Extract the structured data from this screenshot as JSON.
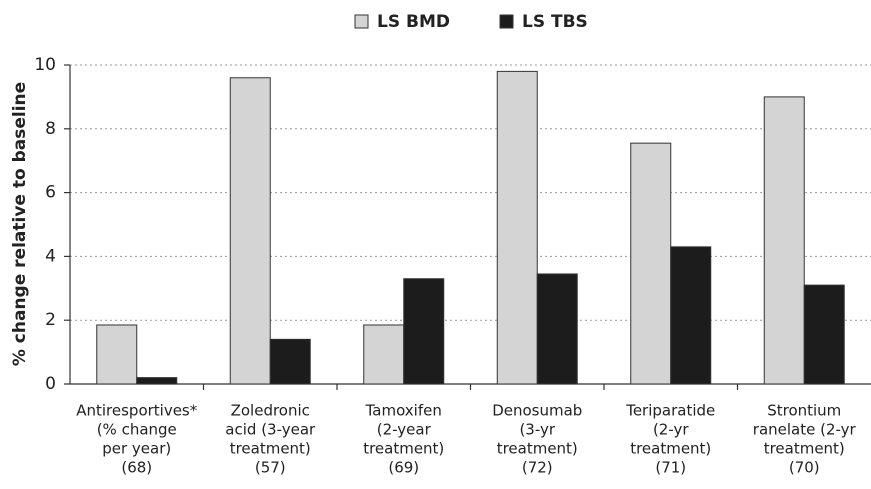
{
  "chart_data": {
    "type": "bar",
    "ylabel": "% change relative to baseline",
    "categories": [
      [
        "Antiresportives*",
        "(% change",
        "per year)",
        "(68)"
      ],
      [
        "Zoledronic",
        "acid (3-year",
        "treatment)",
        "(57)"
      ],
      [
        "Tamoxifen",
        "(2-year",
        "treatment)",
        "(69)"
      ],
      [
        "Denosumab",
        "(3-yr",
        "treatment)",
        "(72)"
      ],
      [
        "Teriparatide",
        "(2-yr",
        "treatment)",
        "(71)"
      ],
      [
        "Strontium",
        "ranelate (2-yr",
        "treatment)",
        "(70)"
      ]
    ],
    "series": [
      {
        "name": "LS BMD",
        "color": "#d4d4d4",
        "values": [
          1.85,
          9.6,
          1.85,
          9.8,
          7.55,
          9.0
        ]
      },
      {
        "name": "LS TBS",
        "color": "#1c1c1c",
        "values": [
          0.2,
          1.4,
          3.3,
          3.45,
          4.3,
          3.1
        ]
      }
    ],
    "ylim": [
      0,
      10
    ],
    "yticks": [
      0,
      2,
      4,
      6,
      8,
      10
    ],
    "grid": true,
    "legend": "top"
  }
}
